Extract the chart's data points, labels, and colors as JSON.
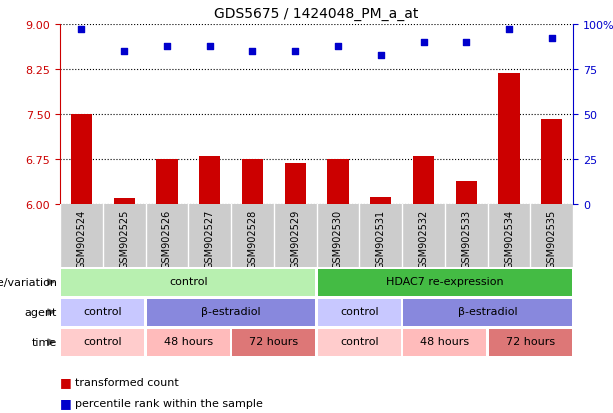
{
  "title": "GDS5675 / 1424048_PM_a_at",
  "samples": [
    "GSM902524",
    "GSM902525",
    "GSM902526",
    "GSM902527",
    "GSM902528",
    "GSM902529",
    "GSM902530",
    "GSM902531",
    "GSM902532",
    "GSM902533",
    "GSM902534",
    "GSM902535"
  ],
  "red_values": [
    7.5,
    6.1,
    6.75,
    6.8,
    6.75,
    6.68,
    6.75,
    6.12,
    6.8,
    6.38,
    8.18,
    7.42
  ],
  "blue_values": [
    97,
    85,
    88,
    88,
    85,
    85,
    88,
    83,
    90,
    90,
    97,
    92
  ],
  "yticks_left": [
    6,
    6.75,
    7.5,
    8.25,
    9
  ],
  "yticks_right": [
    0,
    25,
    50,
    75,
    100
  ],
  "ylim_left": [
    6,
    9
  ],
  "ylim_right": [
    0,
    100
  ],
  "genotype_groups": [
    {
      "label": "control",
      "start": 0,
      "end": 6,
      "color": "#b8f0b0"
    },
    {
      "label": "HDAC7 re-expression",
      "start": 6,
      "end": 12,
      "color": "#44bb44"
    }
  ],
  "agent_groups": [
    {
      "label": "control",
      "start": 0,
      "end": 2,
      "color": "#c8c8ff"
    },
    {
      "label": "β-estradiol",
      "start": 2,
      "end": 6,
      "color": "#8888dd"
    },
    {
      "label": "control",
      "start": 6,
      "end": 8,
      "color": "#c8c8ff"
    },
    {
      "label": "β-estradiol",
      "start": 8,
      "end": 12,
      "color": "#8888dd"
    }
  ],
  "time_groups": [
    {
      "label": "control",
      "start": 0,
      "end": 2,
      "color": "#ffcccc"
    },
    {
      "label": "48 hours",
      "start": 2,
      "end": 4,
      "color": "#ffbbbb"
    },
    {
      "label": "72 hours",
      "start": 4,
      "end": 6,
      "color": "#dd7777"
    },
    {
      "label": "control",
      "start": 6,
      "end": 8,
      "color": "#ffcccc"
    },
    {
      "label": "48 hours",
      "start": 8,
      "end": 10,
      "color": "#ffbbbb"
    },
    {
      "label": "72 hours",
      "start": 10,
      "end": 12,
      "color": "#dd7777"
    }
  ],
  "bar_color": "#cc0000",
  "dot_color": "#0000cc",
  "left_axis_color": "#cc0000",
  "right_axis_color": "#0000cc",
  "xtick_bg_color": "#cccccc",
  "chart_bg_color": "#ffffff",
  "grid_color": "#000000"
}
